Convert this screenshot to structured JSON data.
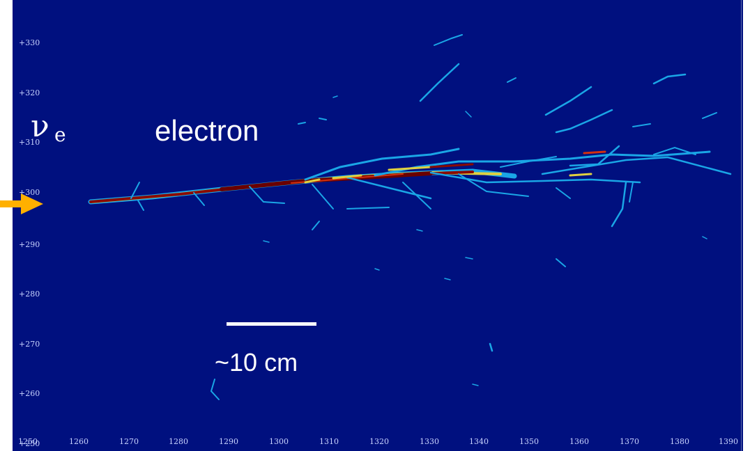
{
  "axes": {
    "y_ticks": [
      "+330",
      "+320",
      "+310",
      "+300",
      "+290",
      "+280",
      "+270",
      "+260",
      "+250"
    ],
    "x_ticks": [
      "1260",
      "1270",
      "1280",
      "1290",
      "1300",
      "1310",
      "1320",
      "1330",
      "1340",
      "1350",
      "1360",
      "1370",
      "1380",
      "1390"
    ],
    "x_first_tick": "1250"
  },
  "annotations": {
    "electron_label": "electron",
    "scale_label": "~10 cm",
    "neutrino_symbol": "ν",
    "neutrino_subscript": "e"
  },
  "colors": {
    "background": "#00107f",
    "low_charge": "#1aa6e6",
    "mid_charge": "#f0e040",
    "high_charge": "#8a0a00",
    "beam_arrow": "#ffb000"
  },
  "icons": {
    "beam_arrow": "right-arrow-icon"
  }
}
